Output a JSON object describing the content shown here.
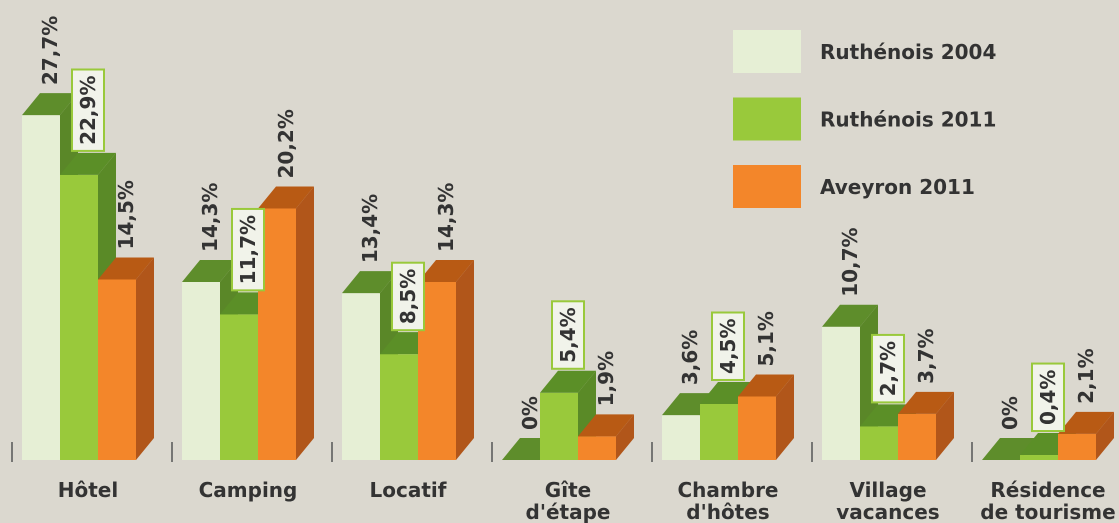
{
  "chart_data": {
    "type": "bar3d",
    "categories": [
      [
        "Hôtel"
      ],
      [
        "Camping"
      ],
      [
        "Locatif"
      ],
      [
        "Gîte",
        "d'étape"
      ],
      [
        "Chambre",
        "d'hôtes"
      ],
      [
        "Village",
        "vacances"
      ],
      [
        "Résidence",
        "de tourisme"
      ]
    ],
    "series": [
      {
        "name": "Ruthénois 2004",
        "color": "#e6efd5",
        "values": [
          27.7,
          14.3,
          13.4,
          0,
          3.6,
          10.7,
          0
        ],
        "value_labels": [
          "27,7%",
          "14,3%",
          "13,4%",
          "0%",
          "3,6%",
          "10,7%",
          "0%"
        ]
      },
      {
        "name": "Ruthénois 2011",
        "color": "#99c93b",
        "values": [
          22.9,
          11.7,
          8.5,
          5.4,
          4.5,
          2.7,
          0.4
        ],
        "value_labels": [
          "22,9%",
          "11,7%",
          "8,5%",
          "5,4%",
          "4,5%",
          "2,7%",
          "0,4%"
        ]
      },
      {
        "name": "Aveyron 2011",
        "color": "#f3862a",
        "values": [
          14.5,
          20.2,
          14.3,
          1.9,
          5.1,
          3.7,
          2.1
        ],
        "value_labels": [
          "14,5%",
          "20,2%",
          "14,3%",
          "1,9%",
          "5,1%",
          "3,7%",
          "2,1%"
        ]
      }
    ]
  }
}
